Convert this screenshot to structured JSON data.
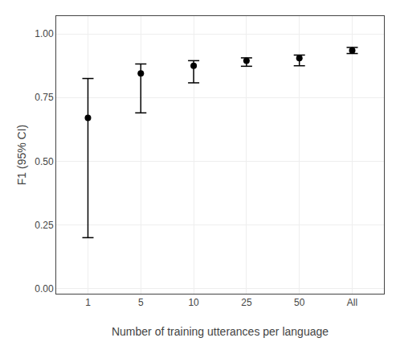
{
  "chart_data": {
    "type": "scatter",
    "categories": [
      "1",
      "5",
      "10",
      "25",
      "50",
      "All"
    ],
    "values": [
      0.67,
      0.845,
      0.875,
      0.895,
      0.905,
      0.935
    ],
    "ci_lower": [
      0.2,
      0.69,
      0.808,
      0.873,
      0.875,
      0.923
    ],
    "ci_upper": [
      0.825,
      0.882,
      0.895,
      0.906,
      0.917,
      0.947
    ],
    "ylim": [
      -0.02,
      1.07
    ],
    "yticks": [
      {
        "value": 0.0,
        "label": "0.00"
      },
      {
        "value": 0.25,
        "label": "0.25"
      },
      {
        "value": 0.5,
        "label": "0.50"
      },
      {
        "value": 0.75,
        "label": "0.75"
      },
      {
        "value": 1.0,
        "label": "1.00"
      }
    ],
    "ylabel": "F1 (95% CI)",
    "xlabel": "Number of training utterances per language",
    "color": "#000000",
    "marker": "circle",
    "grid": true
  }
}
